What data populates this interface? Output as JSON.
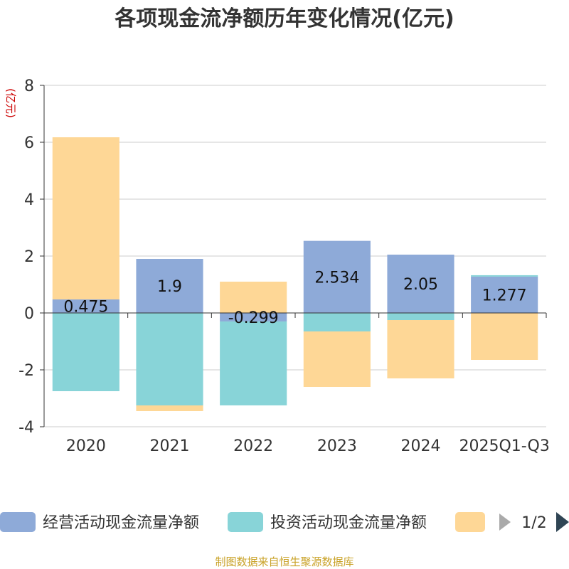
{
  "chart_data": {
    "type": "bar",
    "stacked": true,
    "title": "各项现金流净额历年变化情况(亿元)",
    "ylabel": "(亿元)",
    "xlabel": "",
    "ylim": [
      -4,
      8
    ],
    "yticks": [
      -4,
      -2,
      0,
      2,
      4,
      6,
      8
    ],
    "categories": [
      "2020",
      "2021",
      "2022",
      "2023",
      "2024",
      "2025Q1-Q3"
    ],
    "series": [
      {
        "name": "经营活动现金流量净额",
        "color": "#8eaad8",
        "values": [
          0.475,
          1.9,
          -0.299,
          2.534,
          2.05,
          1.277
        ],
        "labels": [
          "0.475",
          "1.9",
          "-0.299",
          "2.534",
          "2.05",
          "1.277"
        ]
      },
      {
        "name": "投资活动现金流量净额",
        "color": "#88d4d8",
        "values": [
          -2.75,
          -3.25,
          -2.95,
          -0.65,
          -0.25,
          0.05
        ]
      },
      {
        "name": "",
        "color": "#fed796",
        "values": [
          5.7,
          -0.2,
          1.1,
          -1.95,
          -2.05,
          -1.65
        ]
      }
    ],
    "grid": true,
    "legend_position": "bottom",
    "legend_page": "1/2"
  },
  "footer": {
    "source": "制图数据来自恒生聚源数据库"
  }
}
